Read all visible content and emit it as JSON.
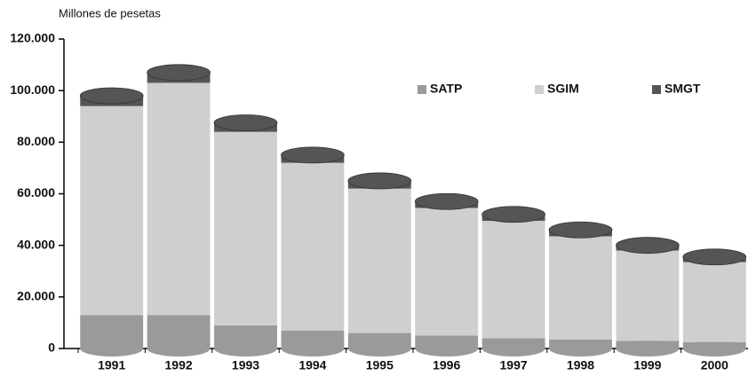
{
  "chart_data": {
    "type": "stacked-cylinder",
    "y_label": "Millones de pesetas",
    "categories": [
      "1991",
      "1992",
      "1993",
      "1994",
      "1995",
      "1996",
      "1997",
      "1998",
      "1999",
      "2000"
    ],
    "series": [
      {
        "name": "SATP",
        "color": "#9a9a9a",
        "values": [
          13000,
          13000,
          9000,
          7000,
          6000,
          5000,
          4000,
          3500,
          3000,
          2500
        ]
      },
      {
        "name": "SGIM",
        "color": "#cfcfcf",
        "values": [
          81000,
          90000,
          75000,
          65000,
          56000,
          49500,
          45500,
          40000,
          35000,
          31000
        ]
      },
      {
        "name": "SMGT",
        "color": "#555555",
        "values": [
          4000,
          4000,
          3500,
          3000,
          3000,
          2500,
          2500,
          2500,
          2000,
          2000
        ]
      }
    ],
    "ylim": [
      0,
      120000
    ],
    "yticks": [
      {
        "value": 0,
        "label": "0"
      },
      {
        "value": 20000,
        "label": "20.000"
      },
      {
        "value": 40000,
        "label": "40.000"
      },
      {
        "value": 60000,
        "label": "60.000"
      },
      {
        "value": 80000,
        "label": "80.000"
      },
      {
        "value": 100000,
        "label": "100.000"
      },
      {
        "value": 120000,
        "label": "120.000"
      }
    ],
    "legend": "top-right"
  }
}
